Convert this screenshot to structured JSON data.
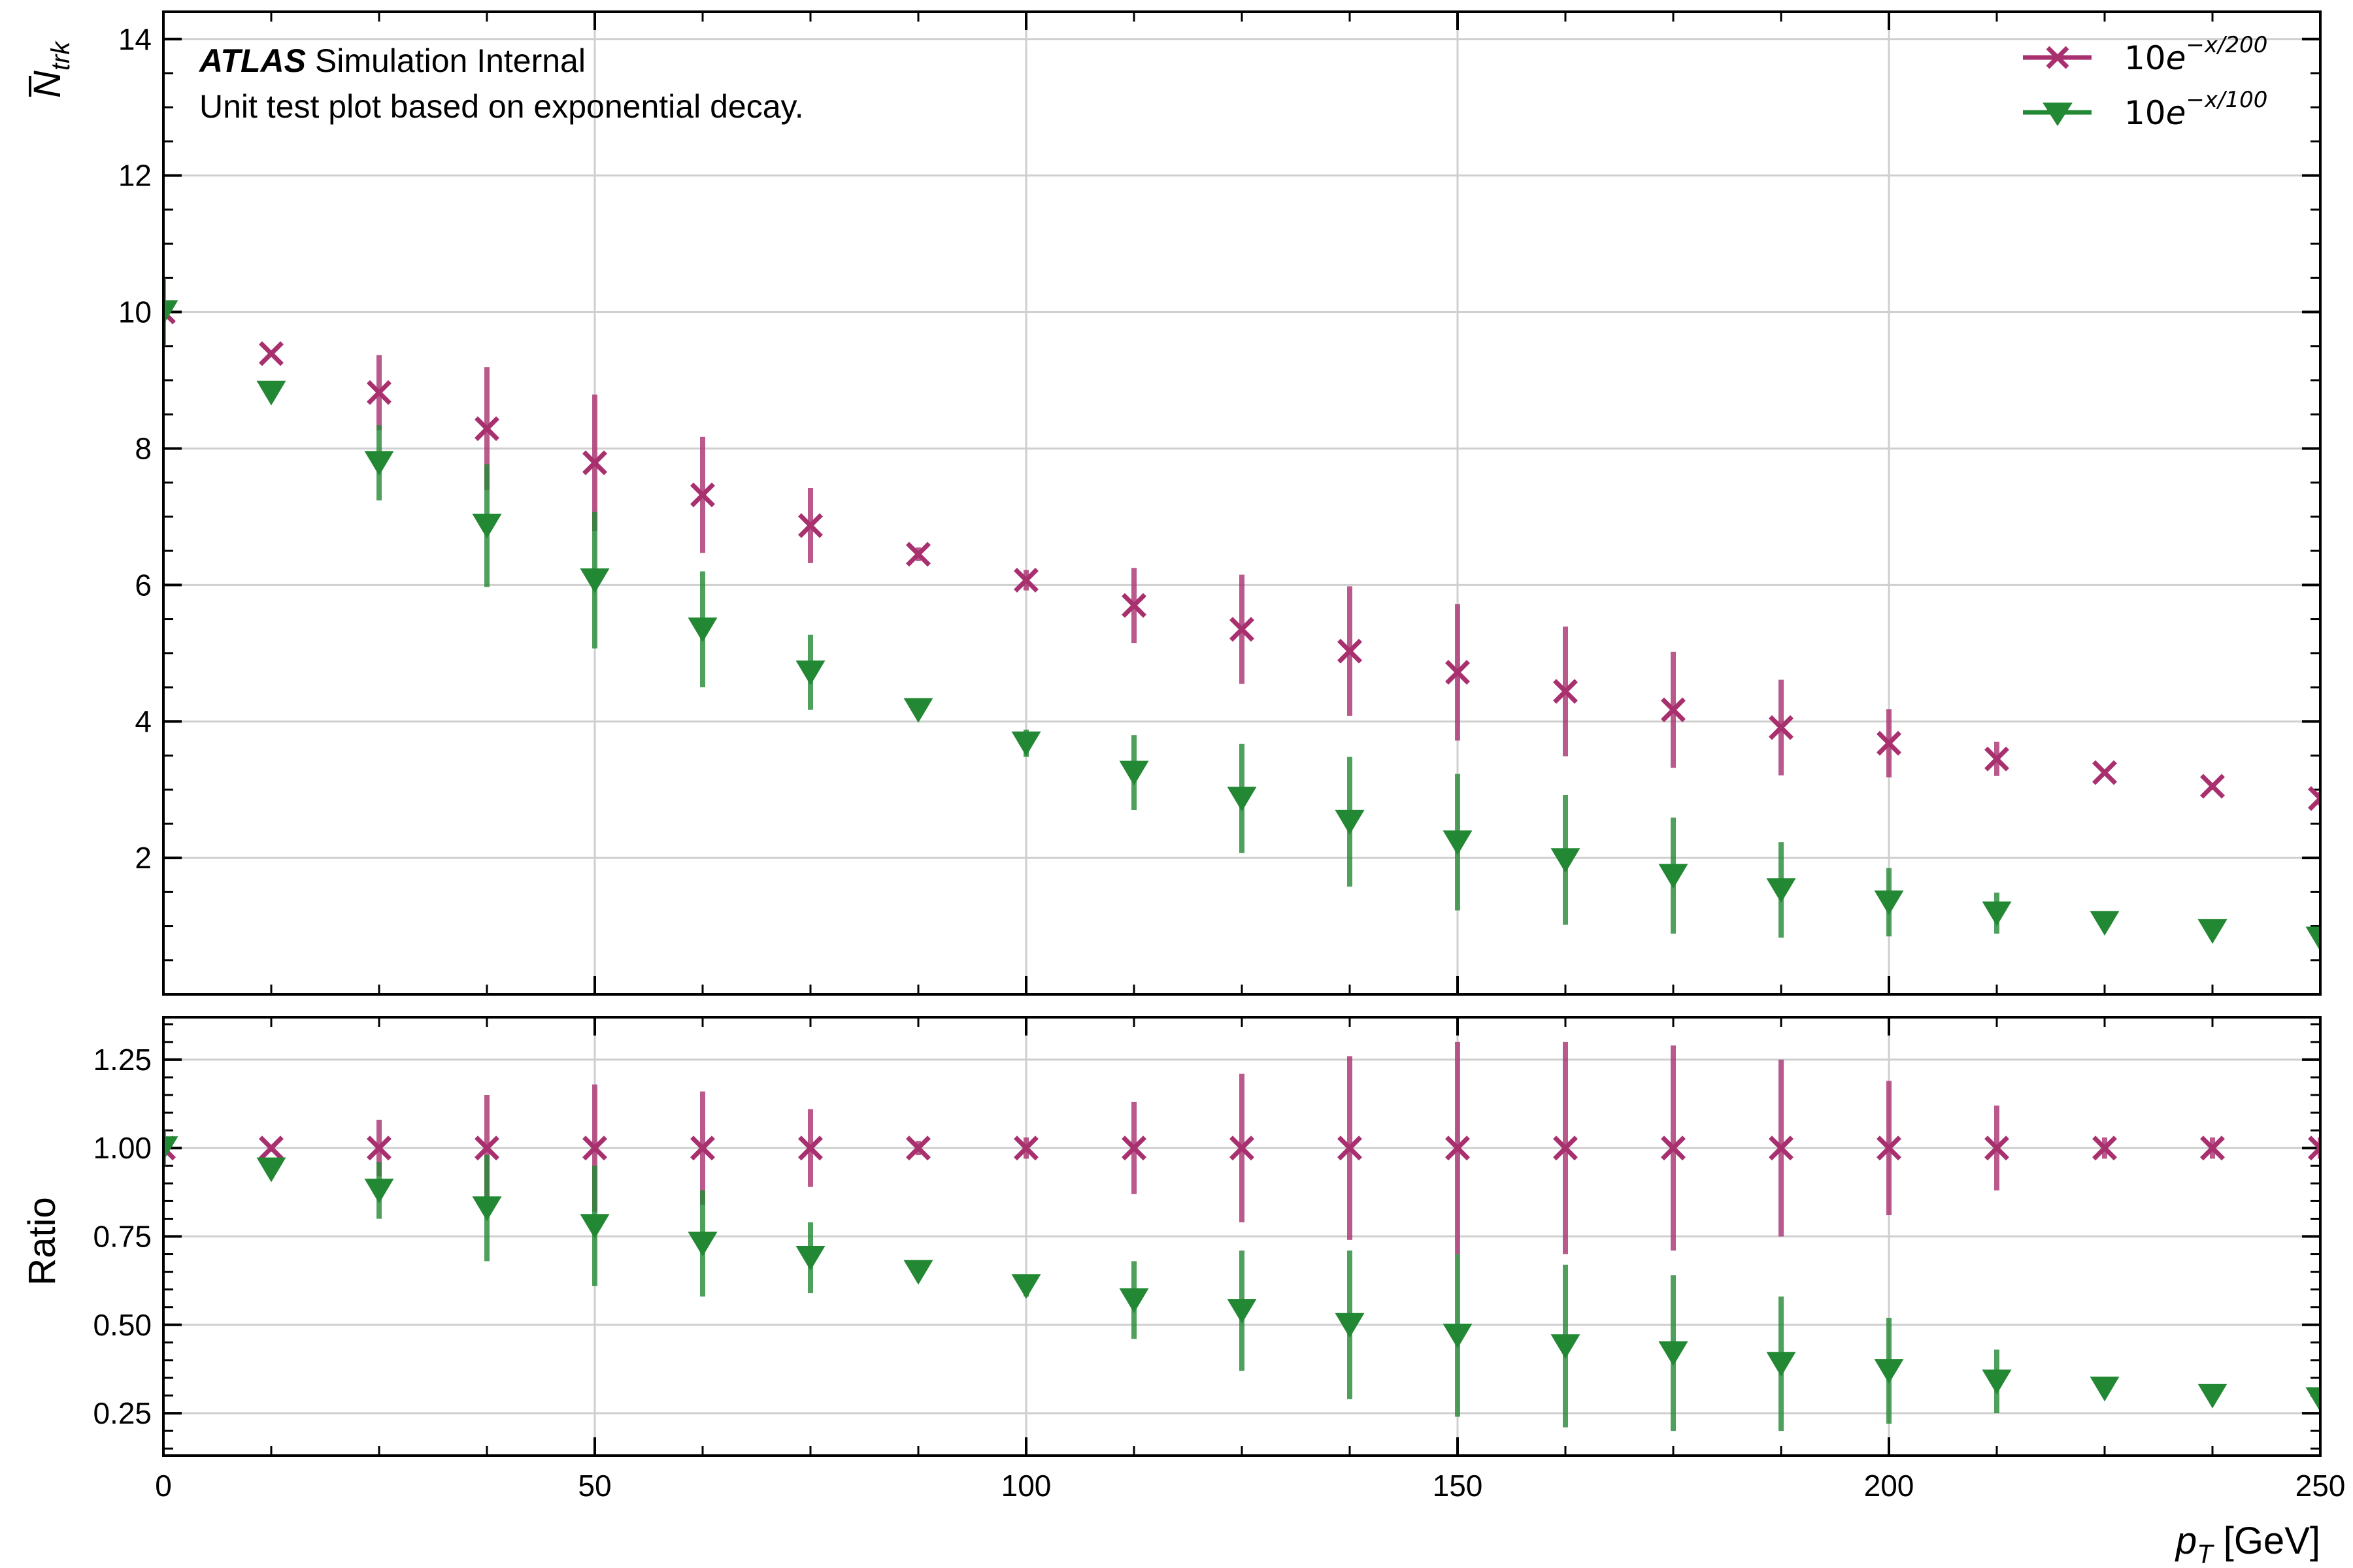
{
  "chart_data": [
    {
      "type": "scatter",
      "panel": "main",
      "ylabel": "N",
      "ylabel_overline": true,
      "ylabel_subscript": "trk",
      "ylim": [
        0,
        14.4
      ],
      "yticks": [
        2,
        4,
        6,
        8,
        10,
        12,
        14
      ],
      "xlim": [
        0,
        250
      ],
      "grid": true,
      "legend_placement": "top-right",
      "annotation": {
        "experiment": "ATLAS",
        "status": "Simulation Internal",
        "description": "Unit test plot based on exponential decay."
      },
      "x": [
        0,
        12.5,
        25,
        37.5,
        50,
        62.5,
        75,
        87.5,
        100,
        112.5,
        125,
        137.5,
        150,
        162.5,
        175,
        187.5,
        200,
        212.5,
        225,
        237.5,
        250
      ],
      "series": [
        {
          "name": "10e^{-x/200}",
          "legend_base": "10",
          "legend_e": "e",
          "legend_exp": "−x/200",
          "color": "#a8306f",
          "marker": "x",
          "y": [
            10.0,
            9.39,
            8.82,
            8.29,
            7.79,
            7.32,
            6.87,
            6.45,
            6.07,
            5.7,
            5.35,
            5.03,
            4.72,
            4.44,
            4.17,
            3.91,
            3.68,
            3.45,
            3.25,
            3.05,
            2.87
          ],
          "err": [
            0.1,
            0.05,
            0.55,
            0.9,
            1.0,
            0.85,
            0.55,
            0.1,
            0.15,
            0.55,
            0.8,
            0.95,
            1.0,
            0.95,
            0.85,
            0.7,
            0.5,
            0.25,
            0.05,
            0.05,
            0.1
          ]
        },
        {
          "name": "10e^{-x/100}",
          "legend_base": "10",
          "legend_e": "e",
          "legend_exp": "−x/100",
          "color": "#228833",
          "marker": "triangle-down",
          "y": [
            10.0,
            8.82,
            7.79,
            6.87,
            6.07,
            5.35,
            4.72,
            4.17,
            3.68,
            3.25,
            2.87,
            2.53,
            2.23,
            1.97,
            1.74,
            1.53,
            1.35,
            1.19,
            1.05,
            0.93,
            0.82
          ],
          "err": [
            0.5,
            0.1,
            0.55,
            0.9,
            1.0,
            0.85,
            0.55,
            0.1,
            0.2,
            0.55,
            0.8,
            0.95,
            1.0,
            0.95,
            0.85,
            0.7,
            0.5,
            0.3,
            0.05,
            0.05,
            0.1
          ]
        }
      ]
    },
    {
      "type": "scatter",
      "panel": "ratio",
      "ylabel": "Ratio",
      "xlabel_var": "p",
      "xlabel_sub": "T",
      "xlabel_unit": "[GeV]",
      "ylim": [
        0.13,
        1.37
      ],
      "yticks": [
        0.25,
        0.5,
        0.75,
        1.0,
        1.25
      ],
      "ytick_labels": [
        "0.25",
        "0.50",
        "0.75",
        "1.00",
        "1.25"
      ],
      "xlim": [
        0,
        250
      ],
      "xticks": [
        0,
        50,
        100,
        150,
        200,
        250
      ],
      "xtick_labels": [
        "0",
        "50",
        "100",
        "150",
        "200",
        "250"
      ],
      "grid": true,
      "x": [
        0,
        12.5,
        25,
        37.5,
        50,
        62.5,
        75,
        87.5,
        100,
        112.5,
        125,
        137.5,
        150,
        162.5,
        175,
        187.5,
        200,
        212.5,
        225,
        237.5,
        250
      ],
      "series": [
        {
          "name": "10e^{-x/200}",
          "color": "#a8306f",
          "marker": "x",
          "y": [
            1.0,
            1.0,
            1.0,
            1.0,
            1.0,
            1.0,
            1.0,
            1.0,
            1.0,
            1.0,
            1.0,
            1.0,
            1.0,
            1.0,
            1.0,
            1.0,
            1.0,
            1.0,
            1.0,
            1.0,
            1.0
          ],
          "err": [
            0.02,
            0.01,
            0.08,
            0.15,
            0.18,
            0.16,
            0.11,
            0.02,
            0.03,
            0.13,
            0.21,
            0.26,
            0.3,
            0.3,
            0.29,
            0.25,
            0.19,
            0.12,
            0.03,
            0.03,
            0.03
          ]
        },
        {
          "name": "10e^{-x/100}",
          "color": "#228833",
          "marker": "triangle-down",
          "y": [
            1.0,
            0.94,
            0.88,
            0.83,
            0.78,
            0.73,
            0.69,
            0.65,
            0.61,
            0.57,
            0.54,
            0.5,
            0.47,
            0.44,
            0.42,
            0.39,
            0.37,
            0.34,
            0.32,
            0.3,
            0.29
          ],
          "err": [
            0.05,
            0.02,
            0.08,
            0.15,
            0.17,
            0.15,
            0.1,
            0.02,
            0.03,
            0.11,
            0.17,
            0.21,
            0.23,
            0.23,
            0.22,
            0.19,
            0.15,
            0.09,
            0.02,
            0.02,
            0.02
          ]
        }
      ]
    }
  ]
}
